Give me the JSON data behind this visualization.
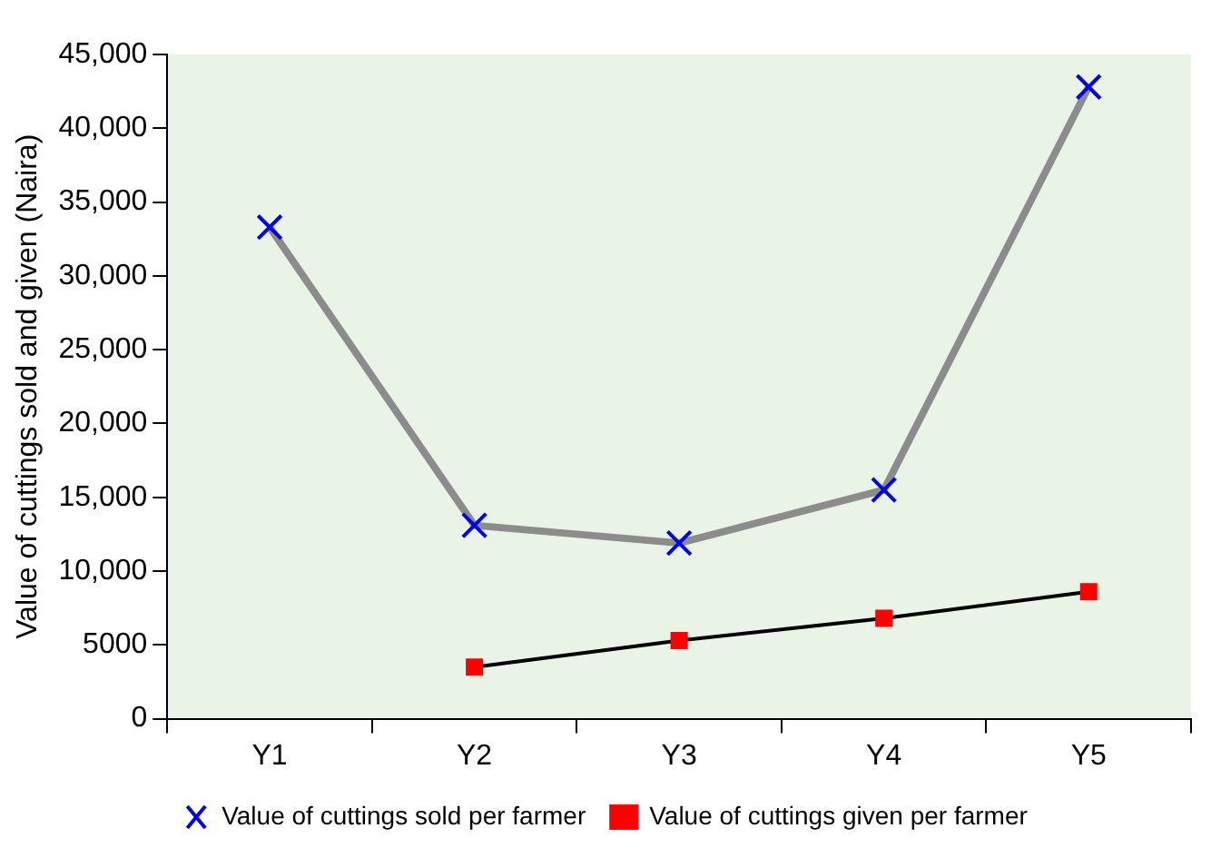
{
  "chart_data": {
    "type": "line",
    "ylabel": "Value of cuttings sold and given (Naira)",
    "categories": [
      "Y1",
      "Y2",
      "Y3",
      "Y4",
      "Y5"
    ],
    "series": [
      {
        "name": "Value of cuttings sold per farmer",
        "color": "#8c8c8c",
        "marker": "cross",
        "values": [
          33300,
          13100,
          11900,
          15500,
          42800
        ]
      },
      {
        "name": "Value of cuttings given per farmer",
        "color": "#000000",
        "marker": "square",
        "values": [
          null,
          3500,
          5300,
          6800,
          8600
        ]
      }
    ],
    "ylim": [
      0,
      45000
    ],
    "yticks": [
      0,
      5000,
      {
        "value": 10000,
        "label": "10,000"
      },
      {
        "value": 15000,
        "label": "15,000"
      },
      {
        "value": 20000,
        "label": "20,000"
      },
      {
        "value": 25000,
        "label": "25,000"
      },
      {
        "value": 30000,
        "label": "30,000"
      },
      {
        "value": 35000,
        "label": "35,000"
      },
      {
        "value": 40000,
        "label": "40,000"
      },
      {
        "value": 45000,
        "label": "45,000"
      }
    ],
    "grid": false,
    "legend": "bottom"
  }
}
